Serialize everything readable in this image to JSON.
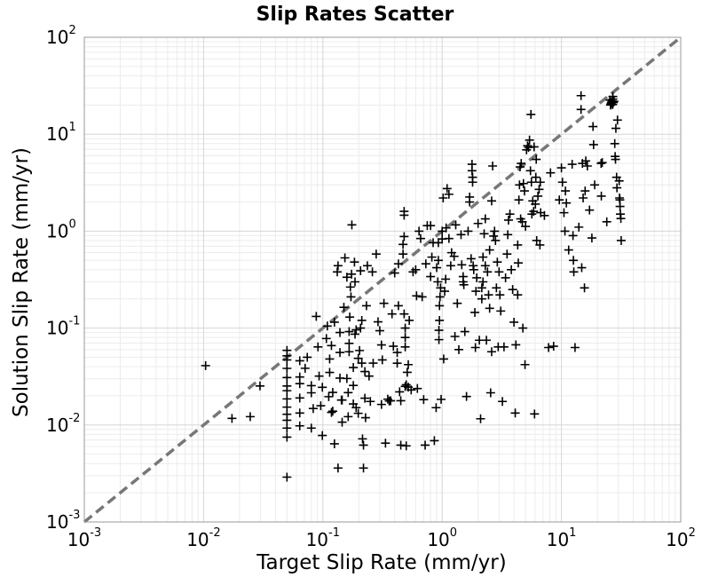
{
  "chart_data": {
    "type": "scatter",
    "title": "Slip Rates Scatter",
    "xlabel": "Target Slip Rate (mm/yr)",
    "ylabel": "Solution Slip Rate (mm/yr)",
    "xscale": "log",
    "yscale": "log",
    "xlim": [
      0.001,
      100
    ],
    "ylim": [
      0.001,
      100
    ],
    "x_ticks": [
      {
        "base": "10",
        "exp": "-3",
        "value": 0.001
      },
      {
        "base": "10",
        "exp": "-2",
        "value": 0.01
      },
      {
        "base": "10",
        "exp": "-1",
        "value": 0.1
      },
      {
        "base": "10",
        "exp": "0",
        "value": 1
      },
      {
        "base": "10",
        "exp": "1",
        "value": 10
      },
      {
        "base": "10",
        "exp": "2",
        "value": 100
      }
    ],
    "y_ticks": [
      {
        "base": "10",
        "exp": "-3",
        "value": 0.001
      },
      {
        "base": "10",
        "exp": "-2",
        "value": 0.01
      },
      {
        "base": "10",
        "exp": "-1",
        "value": 0.1
      },
      {
        "base": "10",
        "exp": "0",
        "value": 1
      },
      {
        "base": "10",
        "exp": "1",
        "value": 10
      },
      {
        "base": "10",
        "exp": "2",
        "value": 100
      }
    ],
    "grid": true,
    "legend": "none",
    "reference_line": {
      "style": "dashed",
      "color": "#777777",
      "points": [
        [
          0.001,
          0.001
        ],
        [
          100,
          100
        ]
      ]
    },
    "marker": {
      "shape": "plus",
      "color": "#000000"
    },
    "points": [
      [
        0.0104,
        0.041
      ],
      [
        0.0173,
        0.0117
      ],
      [
        0.0246,
        0.0122
      ],
      [
        0.0297,
        0.0253
      ],
      [
        0.05,
        0.0029
      ],
      [
        0.05,
        0.0075
      ],
      [
        0.05,
        0.0093
      ],
      [
        0.05,
        0.0112
      ],
      [
        0.05,
        0.0129
      ],
      [
        0.05,
        0.0153
      ],
      [
        0.05,
        0.0186
      ],
      [
        0.05,
        0.0226
      ],
      [
        0.05,
        0.0253
      ],
      [
        0.05,
        0.0309
      ],
      [
        0.05,
        0.0384
      ],
      [
        0.05,
        0.047
      ],
      [
        0.05,
        0.0518
      ],
      [
        0.05,
        0.0589
      ],
      [
        0.064,
        0.046
      ],
      [
        0.064,
        0.0313
      ],
      [
        0.064,
        0.0267
      ],
      [
        0.064,
        0.019
      ],
      [
        0.064,
        0.0133
      ],
      [
        0.064,
        0.0098
      ],
      [
        0.071,
        0.0385
      ],
      [
        0.074,
        0.05
      ],
      [
        0.08,
        0.0215
      ],
      [
        0.08,
        0.0093
      ],
      [
        0.08,
        0.0255
      ],
      [
        0.083,
        0.0148
      ],
      [
        0.088,
        0.132
      ],
      [
        0.091,
        0.064
      ],
      [
        0.093,
        0.032
      ],
      [
        0.096,
        0.0158
      ],
      [
        0.099,
        0.0245
      ],
      [
        0.099,
        0.0078
      ],
      [
        0.107,
        0.078
      ],
      [
        0.109,
        0.105
      ],
      [
        0.112,
        0.0196
      ],
      [
        0.114,
        0.048
      ],
      [
        0.114,
        0.0349
      ],
      [
        0.118,
        0.066
      ],
      [
        0.118,
        0.0135
      ],
      [
        0.121,
        0.0139
      ],
      [
        0.121,
        0.0217
      ],
      [
        0.125,
        0.115
      ],
      [
        0.125,
        0.0064
      ],
      [
        0.132,
        0.38
      ],
      [
        0.134,
        0.44
      ],
      [
        0.134,
        0.0036
      ],
      [
        0.139,
        0.09
      ],
      [
        0.139,
        0.056
      ],
      [
        0.139,
        0.0305
      ],
      [
        0.143,
        0.0181
      ],
      [
        0.145,
        0.0181
      ],
      [
        0.145,
        0.0107
      ],
      [
        0.15,
        0.164
      ],
      [
        0.153,
        0.53
      ],
      [
        0.159,
        0.335
      ],
      [
        0.159,
        0.0302
      ],
      [
        0.163,
        0.0216
      ],
      [
        0.163,
        0.0122
      ],
      [
        0.166,
        0.057
      ],
      [
        0.166,
        0.0695
      ],
      [
        0.166,
        0.092
      ],
      [
        0.168,
        0.13
      ],
      [
        0.17,
        0.265
      ],
      [
        0.172,
        0.21
      ],
      [
        0.174,
        0.36
      ],
      [
        0.175,
        1.16
      ],
      [
        0.18,
        0.0392
      ],
      [
        0.18,
        0.0256
      ],
      [
        0.18,
        0.0165
      ],
      [
        0.184,
        0.48
      ],
      [
        0.186,
        0.3
      ],
      [
        0.186,
        0.0865
      ],
      [
        0.19,
        0.096
      ],
      [
        0.19,
        0.0151
      ],
      [
        0.198,
        0.0132
      ],
      [
        0.198,
        0.0487
      ],
      [
        0.203,
        0.0587
      ],
      [
        0.207,
        0.39
      ],
      [
        0.207,
        0.1
      ],
      [
        0.212,
        0.12
      ],
      [
        0.212,
        0.0435
      ],
      [
        0.215,
        0.0072
      ],
      [
        0.219,
        0.0062
      ],
      [
        0.219,
        0.0036
      ],
      [
        0.225,
        0.0356
      ],
      [
        0.225,
        0.0189
      ],
      [
        0.228,
        0.0119
      ],
      [
        0.232,
        0.17
      ],
      [
        0.236,
        0.44
      ],
      [
        0.244,
        0.032
      ],
      [
        0.25,
        0.0175
      ],
      [
        0.26,
        0.38
      ],
      [
        0.264,
        0.0435
      ],
      [
        0.28,
        0.58
      ],
      [
        0.29,
        0.116
      ],
      [
        0.3,
        0.094
      ],
      [
        0.31,
        0.067
      ],
      [
        0.31,
        0.0163
      ],
      [
        0.315,
        0.047
      ],
      [
        0.325,
        0.18
      ],
      [
        0.335,
        0.0065
      ],
      [
        0.35,
        0.0185
      ],
      [
        0.36,
        0.0177
      ],
      [
        0.37,
        0.0178
      ],
      [
        0.38,
        0.14
      ],
      [
        0.39,
        0.065
      ],
      [
        0.4,
        0.37
      ],
      [
        0.42,
        0.056
      ],
      [
        0.42,
        0.0434
      ],
      [
        0.43,
        0.46
      ],
      [
        0.43,
        0.17
      ],
      [
        0.44,
        0.022
      ],
      [
        0.45,
        0.0178
      ],
      [
        0.45,
        0.0062
      ],
      [
        0.47,
        0.58
      ],
      [
        0.47,
        0.73
      ],
      [
        0.48,
        0.88
      ],
      [
        0.48,
        1.6
      ],
      [
        0.48,
        1.46
      ],
      [
        0.48,
        0.14
      ],
      [
        0.49,
        0.1
      ],
      [
        0.49,
        0.08
      ],
      [
        0.49,
        0.064
      ],
      [
        0.49,
        0.025
      ],
      [
        0.5,
        0.026
      ],
      [
        0.5,
        0.0061
      ],
      [
        0.51,
        0.035
      ],
      [
        0.52,
        0.042
      ],
      [
        0.52,
        0.0246
      ],
      [
        0.53,
        0.12
      ],
      [
        0.55,
        0.023
      ],
      [
        0.57,
        0.38
      ],
      [
        0.6,
        0.4
      ],
      [
        0.61,
        0.215
      ],
      [
        0.62,
        0.0238
      ],
      [
        0.64,
        1.0
      ],
      [
        0.66,
        0.84
      ],
      [
        0.68,
        0.21
      ],
      [
        0.7,
        0.0183
      ],
      [
        0.72,
        0.0062
      ],
      [
        0.73,
        0.46
      ],
      [
        0.75,
        1.14
      ],
      [
        0.8,
        0.34
      ],
      [
        0.8,
        1.14
      ],
      [
        0.82,
        0.54
      ],
      [
        0.84,
        0.76
      ],
      [
        0.86,
        0.0069
      ],
      [
        0.89,
        0.0151
      ],
      [
        0.9,
        0.42
      ],
      [
        0.92,
        0.3
      ],
      [
        0.93,
        0.5
      ],
      [
        0.93,
        0.76
      ],
      [
        0.94,
        0.076
      ],
      [
        0.94,
        0.095
      ],
      [
        0.95,
        0.12
      ],
      [
        0.95,
        0.17
      ],
      [
        0.96,
        0.21
      ],
      [
        0.97,
        0.26
      ],
      [
        0.98,
        0.0184
      ],
      [
        1.0,
        0.83
      ],
      [
        1.0,
        1.0
      ],
      [
        1.02,
        2.2
      ],
      [
        1.03,
        0.048
      ],
      [
        1.05,
        0.24
      ],
      [
        1.07,
        0.32
      ],
      [
        1.08,
        1.08
      ],
      [
        1.1,
        2.75
      ],
      [
        1.14,
        0.84
      ],
      [
        1.14,
        2.4
      ],
      [
        1.18,
        0.44
      ],
      [
        1.2,
        0.6
      ],
      [
        1.26,
        0.55
      ],
      [
        1.28,
        0.082
      ],
      [
        1.3,
        1.16
      ],
      [
        1.34,
        0.18
      ],
      [
        1.38,
        0.06
      ],
      [
        1.44,
        0.92
      ],
      [
        1.46,
        0.45
      ],
      [
        1.5,
        0.3
      ],
      [
        1.5,
        0.34
      ],
      [
        1.52,
        0.28
      ],
      [
        1.55,
        0.092
      ],
      [
        1.6,
        0.0197
      ],
      [
        1.65,
        1.0
      ],
      [
        1.7,
        2.25
      ],
      [
        1.7,
        2.0
      ],
      [
        1.75,
        0.52
      ],
      [
        1.78,
        4.9
      ],
      [
        1.78,
        4.2
      ],
      [
        1.8,
        3.6
      ],
      [
        1.8,
        3.2
      ],
      [
        1.82,
        0.44
      ],
      [
        1.84,
        0.4
      ],
      [
        1.88,
        0.145
      ],
      [
        1.9,
        0.063
      ],
      [
        1.92,
        0.24
      ],
      [
        1.95,
        0.33
      ],
      [
        2.0,
        1.2
      ],
      [
        2.05,
        0.075
      ],
      [
        2.1,
        0.0116
      ],
      [
        2.15,
        0.2
      ],
      [
        2.15,
        0.26
      ],
      [
        2.2,
        0.3
      ],
      [
        2.2,
        0.54
      ],
      [
        2.25,
        0.94
      ],
      [
        2.3,
        0.44
      ],
      [
        2.3,
        1.34
      ],
      [
        2.35,
        0.075
      ],
      [
        2.4,
        0.38
      ],
      [
        2.45,
        0.22
      ],
      [
        2.5,
        0.16
      ],
      [
        2.5,
        0.64
      ],
      [
        2.55,
        0.0215
      ],
      [
        2.6,
        0.057
      ],
      [
        2.6,
        2.05
      ],
      [
        2.65,
        4.7
      ],
      [
        2.7,
        0.89
      ],
      [
        2.75,
        1.0
      ],
      [
        2.8,
        0.8
      ],
      [
        2.85,
        0.26
      ],
      [
        2.9,
        0.48
      ],
      [
        2.95,
        0.064
      ],
      [
        3.0,
        0.38
      ],
      [
        3.05,
        0.22
      ],
      [
        3.1,
        0.15
      ],
      [
        3.2,
        0.0175
      ],
      [
        3.3,
        0.064
      ],
      [
        3.4,
        0.33
      ],
      [
        3.5,
        0.58
      ],
      [
        3.55,
        0.92
      ],
      [
        3.6,
        1.3
      ],
      [
        3.7,
        1.5
      ],
      [
        3.8,
        0.4
      ],
      [
        3.9,
        0.25
      ],
      [
        4.0,
        0.115
      ],
      [
        4.1,
        0.0133
      ],
      [
        4.15,
        0.0672
      ],
      [
        4.3,
        0.72
      ],
      [
        4.3,
        0.22
      ],
      [
        4.35,
        0.47
      ],
      [
        4.4,
        2.1
      ],
      [
        4.45,
        3.0
      ],
      [
        4.5,
        4.6
      ],
      [
        4.55,
        1.34
      ],
      [
        4.6,
        5.0
      ],
      [
        4.7,
        1.25
      ],
      [
        4.75,
        0.1
      ],
      [
        4.8,
        3.1
      ],
      [
        4.9,
        2.6
      ],
      [
        4.95,
        0.042
      ],
      [
        5.0,
        1.12
      ],
      [
        5.1,
        6.9
      ],
      [
        5.2,
        7.6
      ],
      [
        5.3,
        7.3
      ],
      [
        5.4,
        8.7
      ],
      [
        5.5,
        4.2
      ],
      [
        5.55,
        16.0
      ],
      [
        5.6,
        3.2
      ],
      [
        5.65,
        1.5
      ],
      [
        5.75,
        2.05
      ],
      [
        5.85,
        1.6
      ],
      [
        5.9,
        7.4
      ],
      [
        5.95,
        0.013
      ],
      [
        6.05,
        1.9
      ],
      [
        6.1,
        3.6
      ],
      [
        6.15,
        5.5
      ],
      [
        6.2,
        0.8
      ],
      [
        6.35,
        2.3
      ],
      [
        6.5,
        2.7
      ],
      [
        6.6,
        0.72
      ],
      [
        6.65,
        3.2
      ],
      [
        6.7,
        1.55
      ],
      [
        7.2,
        1.45
      ],
      [
        7.8,
        0.063
      ],
      [
        8.1,
        4.0
      ],
      [
        8.6,
        0.065
      ],
      [
        9.6,
        2.1
      ],
      [
        10.0,
        4.5
      ],
      [
        10.2,
        3.2
      ],
      [
        10.5,
        1.55
      ],
      [
        10.7,
        1.0
      ],
      [
        10.8,
        2.6
      ],
      [
        11.0,
        1.95
      ],
      [
        11.5,
        0.64
      ],
      [
        12.3,
        4.9
      ],
      [
        12.5,
        0.9
      ],
      [
        12.6,
        0.5
      ],
      [
        12.7,
        0.38
      ],
      [
        13.0,
        0.063
      ],
      [
        14.0,
        1.1
      ],
      [
        14.6,
        25.0
      ],
      [
        14.6,
        18.0
      ],
      [
        14.8,
        0.42
      ],
      [
        15.0,
        5.0
      ],
      [
        15.2,
        2.2
      ],
      [
        15.6,
        0.26
      ],
      [
        15.8,
        2.6
      ],
      [
        16.0,
        5.3
      ],
      [
        16.5,
        4.7
      ],
      [
        17.2,
        1.65
      ],
      [
        18.0,
        0.85
      ],
      [
        18.4,
        12.0
      ],
      [
        18.6,
        7.8
      ],
      [
        19.0,
        3.0
      ],
      [
        21.5,
        5.0
      ],
      [
        21.6,
        2.3
      ],
      [
        22.0,
        5.1
      ],
      [
        24.0,
        1.25
      ],
      [
        25.5,
        22.5
      ],
      [
        25.8,
        20.0
      ],
      [
        26.0,
        20.5
      ],
      [
        26.2,
        21.0
      ],
      [
        26.4,
        21.5
      ],
      [
        26.6,
        22.0
      ],
      [
        26.9,
        20.2
      ],
      [
        27.0,
        23.0
      ],
      [
        27.0,
        24.5
      ],
      [
        27.2,
        21.2
      ],
      [
        27.6,
        21.8
      ],
      [
        28.0,
        8.0
      ],
      [
        28.2,
        5.9
      ],
      [
        28.4,
        5.5
      ],
      [
        28.6,
        11.5
      ],
      [
        29.0,
        3.6
      ],
      [
        29.2,
        2.8
      ],
      [
        29.5,
        14.0
      ],
      [
        30.5,
        3.3
      ],
      [
        30.7,
        2.2
      ],
      [
        30.9,
        2.1
      ],
      [
        31.0,
        1.8
      ],
      [
        31.2,
        1.5
      ],
      [
        31.5,
        1.35
      ],
      [
        31.7,
        0.8
      ]
    ]
  }
}
